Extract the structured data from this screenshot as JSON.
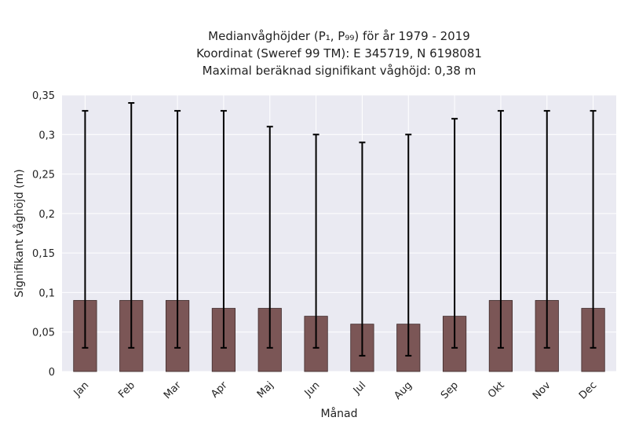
{
  "chart_data": {
    "type": "bar",
    "title_lines": [
      "Medianvåghöjder (P₁, P₉₉) för år 1979 - 2019",
      "Koordinat (Sweref 99 TM): E 345719, N 6198081",
      "Maximal beräknad signifikant våghöjd: 0,38 m"
    ],
    "xlabel": "Månad",
    "ylabel": "Signifikant våghöjd (m)",
    "categories": [
      "Jan",
      "Feb",
      "Mar",
      "Apr",
      "Maj",
      "Jun",
      "Jul",
      "Aug",
      "Sep",
      "Okt",
      "Nov",
      "Dec"
    ],
    "values": [
      0.09,
      0.09,
      0.09,
      0.08,
      0.08,
      0.07,
      0.06,
      0.06,
      0.07,
      0.09,
      0.09,
      0.08
    ],
    "p1": [
      0.03,
      0.03,
      0.03,
      0.03,
      0.03,
      0.03,
      0.02,
      0.02,
      0.03,
      0.03,
      0.03,
      0.03
    ],
    "p99": [
      0.33,
      0.34,
      0.33,
      0.33,
      0.31,
      0.3,
      0.29,
      0.3,
      0.32,
      0.33,
      0.33,
      0.33
    ],
    "yticks": [
      0,
      0.05,
      0.1,
      0.15,
      0.2,
      0.25,
      0.3,
      0.35
    ],
    "ytick_labels": [
      "0",
      "0,05",
      "0,1",
      "0,15",
      "0,2",
      "0,25",
      "0,3",
      "0,35"
    ],
    "ylim": [
      0,
      0.35
    ],
    "grid": true,
    "colors": {
      "bar": "#7b5656",
      "bar_edge": "#3e2a2a",
      "errorbar": "#000000",
      "plot_bg": "#eaeaf2",
      "grid": "#ffffff"
    }
  }
}
